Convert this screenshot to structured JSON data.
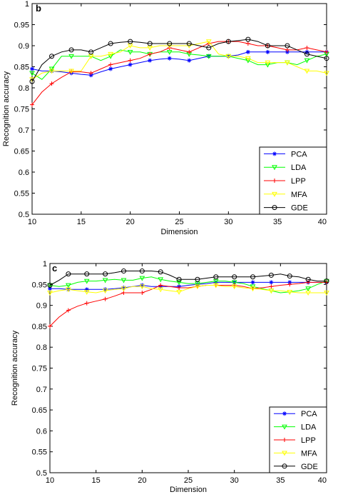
{
  "chart_data": [
    {
      "type": "line",
      "panel_label": "b",
      "xlabel": "Dimension",
      "ylabel": "Recognition accuracy",
      "xlim": [
        10,
        40
      ],
      "ylim": [
        0.5,
        1.0
      ],
      "xticks": [
        10,
        15,
        20,
        25,
        30,
        35,
        40
      ],
      "yticks": [
        0.5,
        0.55,
        0.6,
        0.65,
        0.7,
        0.75,
        0.8,
        0.85,
        0.9,
        0.95,
        1.0
      ],
      "ytick_labels": [
        "0.5",
        "0.55",
        "0.6",
        "0.65",
        "0.7",
        "0.75",
        "0.8",
        "0.85",
        "0.9",
        "0.95",
        "1"
      ],
      "grid": false,
      "legend_position": "bottom-right",
      "x": [
        10,
        11,
        12,
        13,
        14,
        15,
        16,
        17,
        18,
        19,
        20,
        21,
        22,
        23,
        24,
        25,
        26,
        27,
        28,
        29,
        30,
        31,
        32,
        33,
        34,
        35,
        36,
        37,
        38,
        39,
        40
      ],
      "series": [
        {
          "name": "PCA",
          "color": "#0000ff",
          "marker": "star",
          "values": [
            0.845,
            0.84,
            0.84,
            0.838,
            0.835,
            0.832,
            0.83,
            0.838,
            0.845,
            0.85,
            0.855,
            0.86,
            0.865,
            0.868,
            0.87,
            0.868,
            0.865,
            0.87,
            0.875,
            0.875,
            0.875,
            0.878,
            0.885,
            0.885,
            0.885,
            0.885,
            0.885,
            0.885,
            0.885,
            0.885,
            0.885
          ]
        },
        {
          "name": "LDA",
          "color": "#00ff00",
          "marker": "triangle-down",
          "values": [
            0.835,
            0.82,
            0.845,
            0.875,
            0.875,
            0.875,
            0.875,
            0.865,
            0.875,
            0.89,
            0.885,
            0.885,
            0.88,
            0.885,
            0.885,
            0.885,
            0.88,
            0.878,
            0.875,
            0.875,
            0.875,
            0.87,
            0.865,
            0.855,
            0.855,
            0.86,
            0.86,
            0.855,
            0.865,
            0.875,
            0.88
          ]
        },
        {
          "name": "LPP",
          "color": "#ff0000",
          "marker": "plus",
          "values": [
            0.76,
            0.79,
            0.81,
            0.825,
            0.838,
            0.838,
            0.835,
            0.845,
            0.855,
            0.86,
            0.865,
            0.87,
            0.88,
            0.885,
            0.895,
            0.89,
            0.885,
            0.895,
            0.905,
            0.91,
            0.91,
            0.91,
            0.905,
            0.9,
            0.9,
            0.895,
            0.89,
            0.89,
            0.895,
            0.89,
            0.885
          ]
        },
        {
          "name": "MFA",
          "color": "#ffff00",
          "marker": "triangle-down",
          "values": [
            0.82,
            0.835,
            0.84,
            0.84,
            0.84,
            0.84,
            0.875,
            0.875,
            0.88,
            0.885,
            0.9,
            0.895,
            0.895,
            0.9,
            0.9,
            0.9,
            0.9,
            0.905,
            0.91,
            0.88,
            0.875,
            0.875,
            0.87,
            0.86,
            0.86,
            0.86,
            0.86,
            0.85,
            0.84,
            0.84,
            0.835
          ]
        },
        {
          "name": "GDE",
          "color": "#000000",
          "marker": "circle",
          "values": [
            0.815,
            0.855,
            0.875,
            0.885,
            0.89,
            0.89,
            0.885,
            0.895,
            0.905,
            0.908,
            0.91,
            0.908,
            0.905,
            0.905,
            0.905,
            0.905,
            0.905,
            0.9,
            0.895,
            0.905,
            0.91,
            0.912,
            0.915,
            0.91,
            0.9,
            0.9,
            0.9,
            0.89,
            0.88,
            0.875,
            0.87
          ]
        }
      ]
    },
    {
      "type": "line",
      "panel_label": "c",
      "xlabel": "Dimension",
      "ylabel": "Recognition accuracy",
      "xlim": [
        10,
        40
      ],
      "ylim": [
        0.5,
        1.0
      ],
      "xticks": [
        10,
        15,
        20,
        25,
        30,
        35,
        40
      ],
      "yticks": [
        0.5,
        0.55,
        0.6,
        0.65,
        0.7,
        0.75,
        0.8,
        0.85,
        0.9,
        0.95,
        1.0
      ],
      "ytick_labels": [
        "0.5",
        "0.55",
        "0.6",
        "0.65",
        "0.7",
        "0.75",
        "0.8",
        "0.85",
        "0.9",
        "0.95",
        "1"
      ],
      "grid": false,
      "legend_position": "bottom-right",
      "x": [
        10,
        11,
        12,
        13,
        14,
        15,
        16,
        17,
        18,
        19,
        20,
        21,
        22,
        23,
        24,
        25,
        26,
        27,
        28,
        29,
        30,
        31,
        32,
        33,
        34,
        35,
        36,
        37,
        38,
        39,
        40
      ],
      "series": [
        {
          "name": "PCA",
          "color": "#0000ff",
          "marker": "star",
          "values": [
            0.94,
            0.94,
            0.938,
            0.938,
            0.938,
            0.938,
            0.938,
            0.94,
            0.942,
            0.945,
            0.948,
            0.945,
            0.945,
            0.945,
            0.945,
            0.948,
            0.95,
            0.952,
            0.955,
            0.955,
            0.955,
            0.955,
            0.955,
            0.955,
            0.955,
            0.955,
            0.955,
            0.955,
            0.955,
            0.955,
            0.955
          ]
        },
        {
          "name": "LDA",
          "color": "#00ff00",
          "marker": "triangle-down",
          "values": [
            0.948,
            0.945,
            0.948,
            0.955,
            0.958,
            0.958,
            0.96,
            0.962,
            0.96,
            0.96,
            0.965,
            0.968,
            0.962,
            0.958,
            0.955,
            0.952,
            0.952,
            0.955,
            0.958,
            0.958,
            0.955,
            0.952,
            0.945,
            0.94,
            0.935,
            0.93,
            0.932,
            0.935,
            0.94,
            0.95,
            0.958
          ]
        },
        {
          "name": "LPP",
          "color": "#ff0000",
          "marker": "plus",
          "values": [
            0.85,
            0.872,
            0.888,
            0.898,
            0.905,
            0.91,
            0.915,
            0.922,
            0.93,
            0.93,
            0.93,
            0.938,
            0.948,
            0.945,
            0.942,
            0.942,
            0.945,
            0.948,
            0.948,
            0.948,
            0.948,
            0.945,
            0.94,
            0.942,
            0.945,
            0.948,
            0.95,
            0.952,
            0.955,
            0.955,
            0.955
          ]
        },
        {
          "name": "MFA",
          "color": "#ffff00",
          "marker": "triangle-down",
          "values": [
            0.93,
            0.935,
            0.938,
            0.935,
            0.932,
            0.93,
            0.935,
            0.938,
            0.94,
            0.945,
            0.945,
            0.94,
            0.938,
            0.935,
            0.932,
            0.94,
            0.945,
            0.948,
            0.948,
            0.945,
            0.945,
            0.942,
            0.94,
            0.938,
            0.935,
            0.935,
            0.932,
            0.93,
            0.93,
            0.93,
            0.93
          ]
        },
        {
          "name": "GDE",
          "color": "#000000",
          "marker": "circle",
          "values": [
            0.948,
            0.96,
            0.975,
            0.975,
            0.975,
            0.975,
            0.975,
            0.978,
            0.982,
            0.982,
            0.982,
            0.982,
            0.98,
            0.972,
            0.962,
            0.962,
            0.962,
            0.965,
            0.968,
            0.968,
            0.968,
            0.968,
            0.968,
            0.97,
            0.972,
            0.975,
            0.97,
            0.968,
            0.962,
            0.958,
            0.958
          ]
        }
      ]
    }
  ]
}
